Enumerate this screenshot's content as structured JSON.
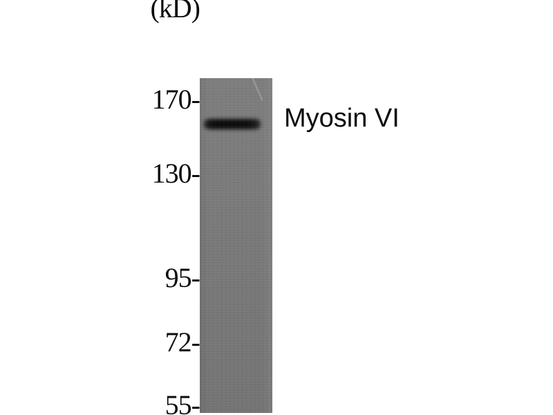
{
  "figure": {
    "type": "western-blot",
    "unit_label": "(kD)",
    "band_label": "Myosin VI",
    "markers": [
      {
        "label": "170-",
        "value": 170
      },
      {
        "label": "130-",
        "value": 130
      },
      {
        "label": "95-",
        "value": 95
      },
      {
        "label": "72-",
        "value": 72
      },
      {
        "label": "55-",
        "value": 55
      }
    ],
    "colors": {
      "background": "#ffffff",
      "lane": "#797979",
      "band": "#0b0b0b",
      "text": "#0c0c0c"
    }
  }
}
